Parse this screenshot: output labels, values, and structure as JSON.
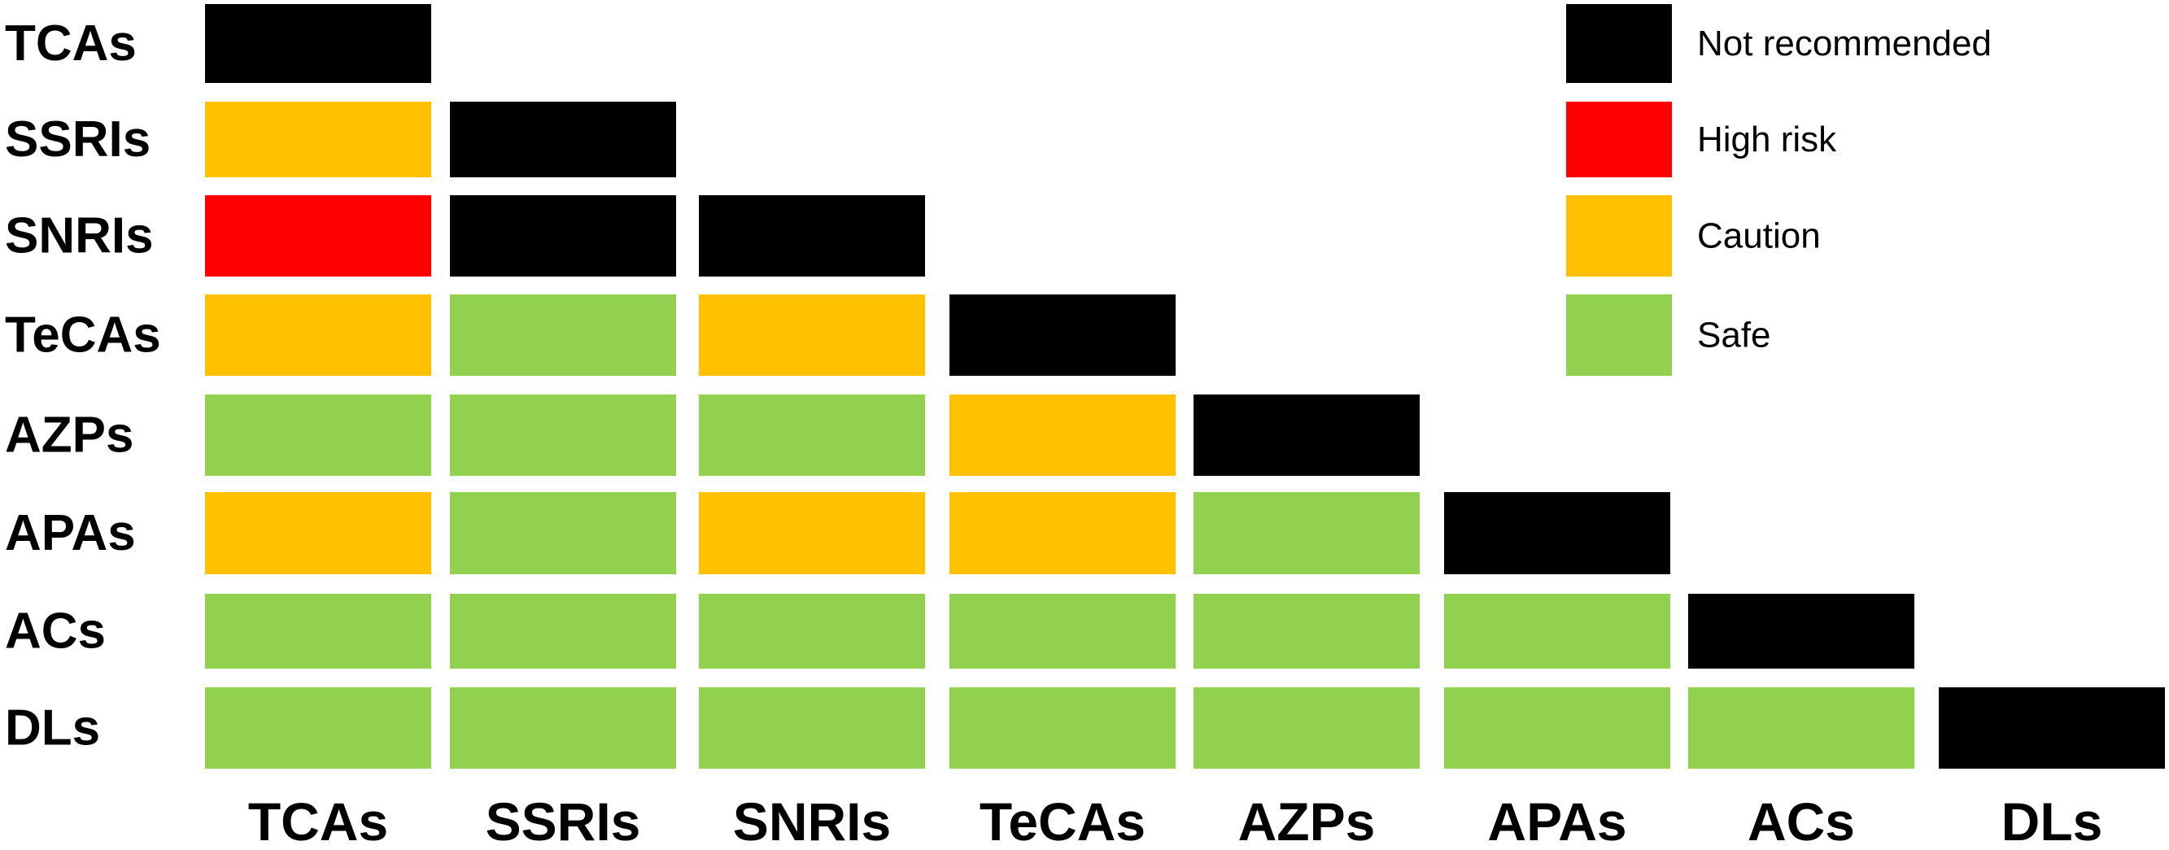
{
  "chart_data": {
    "type": "heatmap",
    "title": "",
    "xlabel": "",
    "ylabel": "",
    "rows": [
      "TCAs",
      "SSRIs",
      "SNRIs",
      "TeCAs",
      "AZPs",
      "APAs",
      "ACs",
      "DLs"
    ],
    "columns": [
      "TCAs",
      "SSRIs",
      "SNRIs",
      "TeCAs",
      "AZPs",
      "APAs",
      "ACs",
      "DLs"
    ],
    "matrix": [
      [
        "Not recommended"
      ],
      [
        "Caution",
        "Not recommended"
      ],
      [
        "High risk",
        "Not recommended",
        "Not recommended"
      ],
      [
        "Caution",
        "Safe",
        "Caution",
        "Not recommended"
      ],
      [
        "Safe",
        "Safe",
        "Safe",
        "Caution",
        "Not recommended"
      ],
      [
        "Caution",
        "Safe",
        "Caution",
        "Caution",
        "Safe",
        "Not recommended"
      ],
      [
        "Safe",
        "Safe",
        "Safe",
        "Safe",
        "Safe",
        "Safe",
        "Not recommended"
      ],
      [
        "Safe",
        "Safe",
        "Safe",
        "Safe",
        "Safe",
        "Safe",
        "Safe",
        "Not recommended"
      ]
    ],
    "legend": {
      "position": "top-right",
      "items": [
        {
          "label": "Not recommended",
          "color": "#000000"
        },
        {
          "label": "High risk",
          "color": "#ff0000"
        },
        {
          "label": "Caution",
          "color": "#ffc000"
        },
        {
          "label": "Safe",
          "color": "#92d050"
        }
      ]
    },
    "grid": false
  }
}
